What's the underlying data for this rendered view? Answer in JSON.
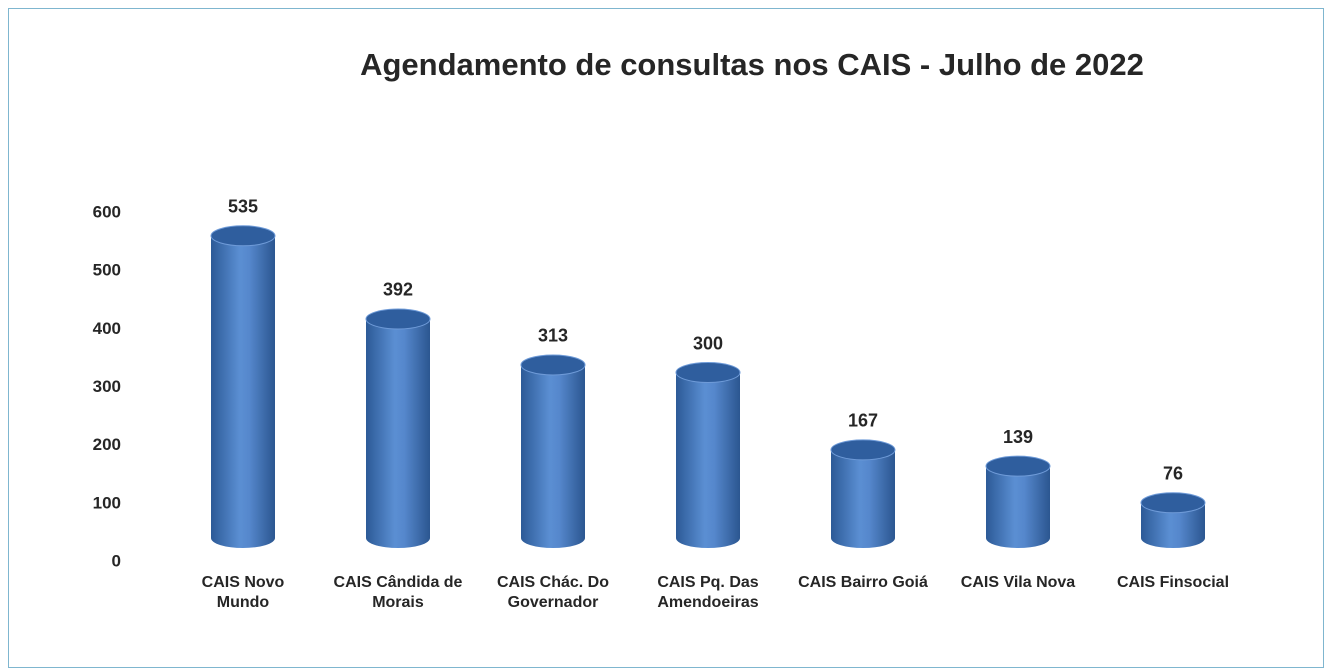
{
  "chart_data": {
    "type": "bar3d",
    "title": "Agendamento de consultas nos CAIS - Julho de 2022",
    "categories": [
      "CAIS Novo Mundo",
      "CAIS Cândida de Morais",
      "CAIS Chác. Do Governador",
      "CAIS Pq. Das Amendoeiras",
      "CAIS Bairro Goiá",
      "CAIS Vila Nova",
      "CAIS Finsocial"
    ],
    "values": [
      535,
      392,
      313,
      300,
      167,
      139,
      76
    ],
    "color": "#4a7ec4",
    "ylim": [
      0,
      600
    ],
    "yticks": [
      0,
      100,
      200,
      300,
      400,
      500,
      600
    ],
    "grid": false
  }
}
